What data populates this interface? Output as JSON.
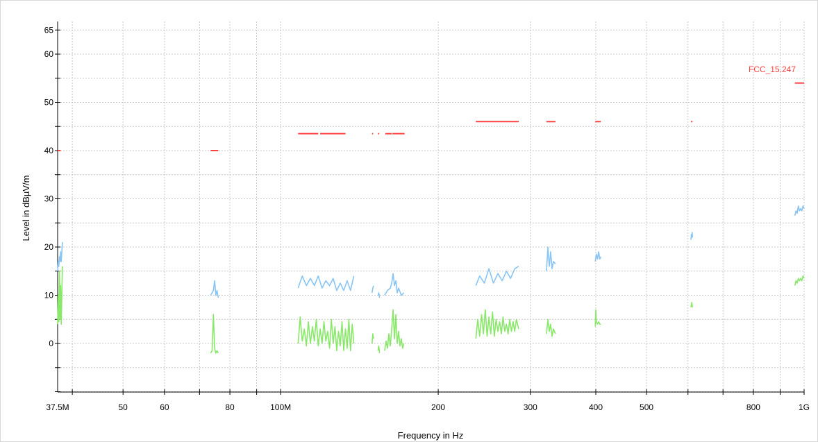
{
  "chart_data": {
    "type": "line",
    "title": "",
    "xlabel": "Frequency in Hz",
    "ylabel": "Level in dBµV/m",
    "xscale": "log",
    "xlim": [
      37.5,
      1000
    ],
    "ylim": [
      -10,
      65
    ],
    "grid": true,
    "x_ticks": [
      {
        "value": 37.5,
        "label": "37.5M"
      },
      {
        "value": 50,
        "label": "50"
      },
      {
        "value": 60,
        "label": "60"
      },
      {
        "value": 80,
        "label": "80"
      },
      {
        "value": 100,
        "label": "100M"
      },
      {
        "value": 200,
        "label": "200"
      },
      {
        "value": 300,
        "label": "300"
      },
      {
        "value": 400,
        "label": "400"
      },
      {
        "value": 500,
        "label": "500"
      },
      {
        "value": 800,
        "label": "800"
      },
      {
        "value": 1000,
        "label": "1G"
      }
    ],
    "y_ticks": [
      {
        "value": 65,
        "label": "65"
      },
      {
        "value": 60,
        "label": "60"
      },
      {
        "value": 50,
        "label": "50"
      },
      {
        "value": 40,
        "label": "40"
      },
      {
        "value": 30,
        "label": "30"
      },
      {
        "value": 20,
        "label": "20"
      },
      {
        "value": 10,
        "label": "10"
      },
      {
        "value": 0,
        "label": "0"
      }
    ],
    "limit_line": {
      "name": "FCC_15.247",
      "color": "#ff4040",
      "segments": [
        {
          "x": [
            37.5,
            38.0
          ],
          "y": 40
        },
        {
          "x": [
            73.5,
            76.0
          ],
          "y": 40
        },
        {
          "x": [
            108,
            118
          ],
          "y": 43.5
        },
        {
          "x": [
            119,
            133
          ],
          "y": 43.5
        },
        {
          "x": [
            149.5,
            150.2
          ],
          "y": 43.5
        },
        {
          "x": [
            153.5,
            154.3
          ],
          "y": 43.5
        },
        {
          "x": [
            158.5,
            163
          ],
          "y": 43.5
        },
        {
          "x": [
            163.5,
            172.5
          ],
          "y": 43.5
        },
        {
          "x": [
            236,
            285
          ],
          "y": 46
        },
        {
          "x": [
            322,
            335
          ],
          "y": 46
        },
        {
          "x": [
            399,
            409
          ],
          "y": 46
        },
        {
          "x": [
            608,
            612
          ],
          "y": 46
        },
        {
          "x": [
            960,
            1000
          ],
          "y": 54
        }
      ]
    },
    "series": [
      {
        "color": "#88c4f4",
        "segments": [
          {
            "x": [
              37.5,
              37.6,
              37.7,
              37.8,
              37.9,
              38.0,
              38.1,
              38.3
            ],
            "y": [
              15,
              17,
              16,
              18,
              17,
              19,
              17,
              21
            ]
          },
          {
            "x": [
              73.5,
              74.0,
              74.4,
              74.8,
              75.2,
              75.6,
              76.0
            ],
            "y": [
              10,
              10.5,
              11,
              13,
              10,
              11,
              9.5
            ]
          },
          {
            "x": [
              108,
              110,
              112,
              114,
              116,
              118,
              120,
              122,
              124,
              126,
              128,
              130,
              132,
              134,
              136,
              138
            ],
            "y": [
              11.5,
              14,
              12,
              13.5,
              12,
              14,
              11.5,
              13,
              12,
              13.5,
              11,
              12.5,
              11,
              13,
              11,
              14
            ]
          },
          {
            "x": [
              149.5,
              150,
              150.5
            ],
            "y": [
              10.5,
              11.5,
              12
            ]
          },
          {
            "x": [
              153.5,
              154,
              154.5
            ],
            "y": [
              10,
              10.5,
              9.5
            ]
          },
          {
            "x": [
              158,
              160,
              162,
              163,
              164,
              165,
              166,
              167,
              168,
              170,
              172
            ],
            "y": [
              10,
              11,
              11.5,
              12.5,
              14.5,
              12,
              13,
              10.5,
              11.5,
              10,
              10.5
            ]
          },
          {
            "x": [
              236,
              240,
              245,
              250,
              255,
              260,
              265,
              270,
              275,
              280,
              285
            ],
            "y": [
              12,
              14,
              12.5,
              15.5,
              12.5,
              14.5,
              13,
              15,
              13.5,
              15.5,
              16
            ]
          },
          {
            "x": [
              322,
              324,
              326,
              328,
              330,
              332,
              335
            ],
            "y": [
              15,
              20,
              16,
              19,
              15.5,
              17,
              16.5
            ]
          },
          {
            "x": [
              399,
              401,
              403,
              405,
              407,
              409
            ],
            "y": [
              17,
              18.5,
              17.5,
              19,
              17.5,
              18
            ]
          },
          {
            "x": [
              608,
              609,
              610,
              611,
              612
            ],
            "y": [
              21.5,
              22.5,
              22,
              23,
              22
            ]
          },
          {
            "x": [
              960,
              965,
              970,
              975,
              980,
              985,
              990,
              995,
              1000
            ],
            "y": [
              26.5,
              27.5,
              27,
              28.5,
              27.5,
              28,
              27.5,
              28.5,
              28
            ]
          }
        ]
      },
      {
        "color": "#88e868",
        "segments": [
          {
            "x": [
              37.5,
              37.6,
              37.7,
              37.8,
              37.9,
              38.0,
              38.1,
              38.3
            ],
            "y": [
              4,
              10,
              4.5,
              15,
              5,
              12,
              4,
              16
            ]
          },
          {
            "x": [
              73.5,
              74.0,
              74.4,
              74.8,
              75.2,
              75.6,
              76.0
            ],
            "y": [
              -2,
              -1.5,
              6,
              -1,
              -2,
              -1.5,
              -2
            ]
          },
          {
            "x": [
              108,
              109,
              110,
              111,
              112,
              113,
              114,
              115,
              116,
              117,
              118,
              119,
              120,
              121,
              122,
              123,
              124,
              125,
              126,
              127,
              128,
              129,
              130,
              131,
              132,
              133,
              134,
              135,
              136,
              137,
              138
            ],
            "y": [
              0,
              5.5,
              0.5,
              3,
              -0.5,
              4.5,
              0,
              3.5,
              0.5,
              5,
              -0.5,
              3,
              0,
              4.5,
              0.5,
              2.5,
              -1,
              5,
              0,
              3.5,
              -1.5,
              2.5,
              -0.5,
              4.5,
              -1.5,
              3,
              -1,
              5,
              -1.5,
              4,
              0
            ]
          },
          {
            "x": [
              149.5,
              150,
              150.5
            ],
            "y": [
              0,
              2,
              1
            ]
          },
          {
            "x": [
              153.5,
              154,
              154.5
            ],
            "y": [
              -1.5,
              -0.5,
              -2
            ]
          },
          {
            "x": [
              158,
              159,
              160,
              161,
              162,
              163,
              164,
              165,
              166,
              167,
              168,
              169,
              170,
              171,
              172
            ],
            "y": [
              -1.5,
              0.5,
              -1,
              2,
              -0.5,
              3,
              7,
              1,
              6,
              0,
              2.5,
              -0.5,
              1,
              -1,
              0
            ]
          },
          {
            "x": [
              236,
              238,
              240,
              242,
              244,
              246,
              248,
              250,
              252,
              254,
              256,
              258,
              260,
              262,
              264,
              266,
              268,
              270,
              272,
              274,
              276,
              278,
              280,
              282,
              285
            ],
            "y": [
              1,
              5,
              1.5,
              6,
              2,
              7,
              1.5,
              5.5,
              2,
              6.5,
              1.5,
              5,
              2.5,
              4.5,
              2,
              5.5,
              2.5,
              4,
              2,
              5,
              2.5,
              4.5,
              2.5,
              5,
              3
            ]
          },
          {
            "x": [
              322,
              324,
              326,
              328,
              330,
              332,
              335
            ],
            "y": [
              2,
              5,
              2.5,
              4,
              1.5,
              3,
              2
            ]
          },
          {
            "x": [
              399,
              400,
              401,
              403,
              405,
              407,
              409
            ],
            "y": [
              3.5,
              7,
              4.5,
              4,
              4.5,
              4,
              4
            ]
          },
          {
            "x": [
              608,
              610,
              612
            ],
            "y": [
              7.5,
              8.5,
              7.5
            ]
          },
          {
            "x": [
              960,
              965,
              970,
              975,
              980,
              985,
              990,
              995,
              1000
            ],
            "y": [
              12,
              13,
              12.5,
              13.5,
              13,
              13.5,
              13,
              14,
              13.5
            ]
          }
        ]
      }
    ]
  }
}
